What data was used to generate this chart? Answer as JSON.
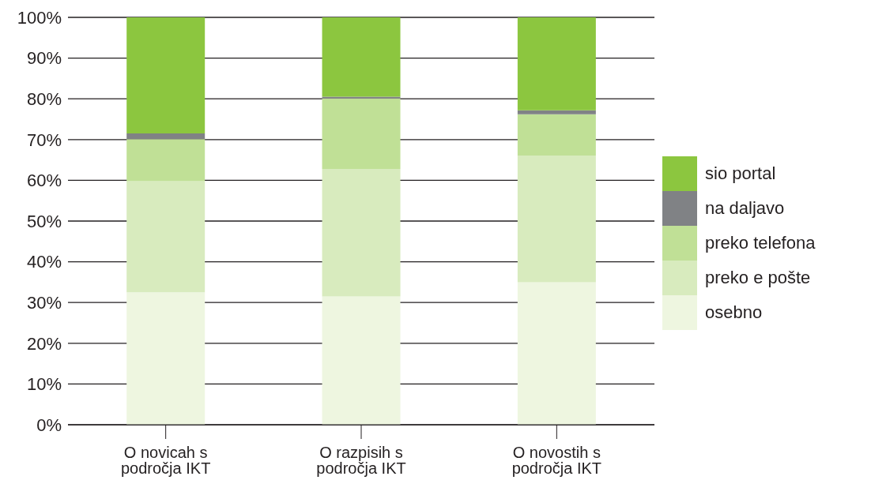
{
  "chart_data": {
    "type": "bar",
    "stacked": true,
    "categories": [
      "O novicah s področja IKT",
      "O razpisih s področja IKT",
      "O novostih s področja IKT"
    ],
    "series": [
      {
        "name": "osebno",
        "color": "#eef6e0",
        "values": [
          32.5,
          31.5,
          35.0
        ]
      },
      {
        "name": "preko e pošte",
        "color": "#d8ebbe",
        "values": [
          27.3,
          31.3,
          31.1
        ]
      },
      {
        "name": "preko telefona",
        "color": "#c0e096",
        "values": [
          10.3,
          17.3,
          10.1
        ]
      },
      {
        "name": "na daljavo",
        "color": "#808285",
        "values": [
          1.4,
          0.4,
          1.0
        ]
      },
      {
        "name": "sio portal",
        "color": "#8cc63f",
        "values": [
          28.5,
          19.5,
          22.8
        ]
      }
    ],
    "ylim": [
      0,
      100
    ],
    "yticks": [
      {
        "value": 0,
        "label": "0%"
      },
      {
        "value": 10,
        "label": "10%"
      },
      {
        "value": 20,
        "label": "20%"
      },
      {
        "value": 30,
        "label": "30%"
      },
      {
        "value": 40,
        "label": "40%"
      },
      {
        "value": 50,
        "label": "50%"
      },
      {
        "value": 60,
        "label": "60%"
      },
      {
        "value": 70,
        "label": "70%"
      },
      {
        "value": 80,
        "label": "80%"
      },
      {
        "value": 90,
        "label": "90%"
      },
      {
        "value": 100,
        "label": "100%"
      }
    ],
    "grid": "y",
    "legend": "right"
  }
}
